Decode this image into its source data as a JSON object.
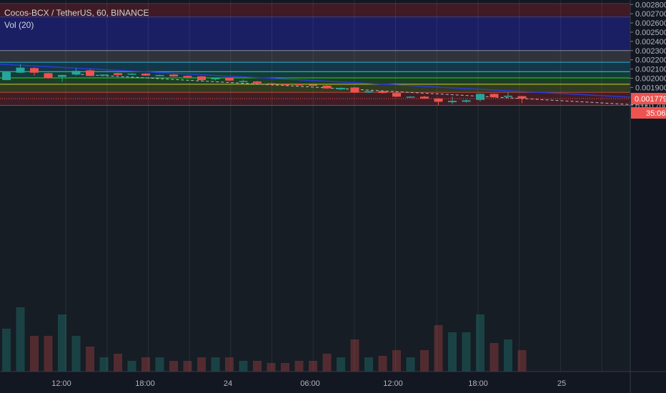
{
  "legend": {
    "symbol_line": "Cocos-BCX / TetherUS, 60, BINANCE",
    "indicator": "Vol (20)"
  },
  "price_axis": {
    "ticks": [
      "0.002800",
      "0.002700",
      "0.002600",
      "0.002500",
      "0.002400",
      "0.002300",
      "0.002200",
      "0.002100",
      "0.002000",
      "0.001900",
      "0.001700"
    ],
    "hidden_tick": "0.001800",
    "current_price_label": "0.001779",
    "countdown_label": "35:06"
  },
  "time_axis": {
    "ticks": [
      "12:00",
      "18:00",
      "24",
      "06:00",
      "12:00",
      "18:00",
      "25"
    ]
  },
  "colors": {
    "background": "#131722",
    "up": "#26a69a",
    "down": "#ef5350",
    "trendline": "#2a3ad6",
    "current_price": "#ef5350"
  },
  "chart_data": {
    "type": "candlestick",
    "timeframe": "60",
    "symbol": "Cocos-BCX / TetherUS",
    "exchange": "BINANCE",
    "ylim": [
      0.00165,
      0.00281
    ],
    "price_levels": [
      0.00281,
      0.002665,
      0.0023,
      0.002173,
      0.002072,
      0.002004,
      0.001935,
      0.001847,
      0.001705
    ],
    "candles": [
      {
        "o": 0.00198,
        "h": 0.00207,
        "l": 0.00198,
        "c": 0.002065
      },
      {
        "o": 0.00206,
        "h": 0.00215,
        "l": 0.002055,
        "c": 0.002115
      },
      {
        "o": 0.00211,
        "h": 0.00212,
        "l": 0.00203,
        "c": 0.00206
      },
      {
        "o": 0.002055,
        "h": 0.00206,
        "l": 0.001995,
        "c": 0.002
      },
      {
        "o": 0.002015,
        "h": 0.00204,
        "l": 0.00196,
        "c": 0.002035
      },
      {
        "o": 0.00204,
        "h": 0.00211,
        "l": 0.00203,
        "c": 0.00208
      },
      {
        "o": 0.002085,
        "h": 0.0021,
        "l": 0.00202,
        "c": 0.002025
      },
      {
        "o": 0.002035,
        "h": 0.00204,
        "l": 0.002028,
        "c": 0.00204
      },
      {
        "o": 0.002055,
        "h": 0.00206,
        "l": 0.00203,
        "c": 0.002035
      },
      {
        "o": 0.00204,
        "h": 0.002055,
        "l": 0.002035,
        "c": 0.00205
      },
      {
        "o": 0.00205,
        "h": 0.002055,
        "l": 0.002025,
        "c": 0.00203
      },
      {
        "o": 0.00203,
        "h": 0.00204,
        "l": 0.002025,
        "c": 0.002035
      },
      {
        "o": 0.00204,
        "h": 0.002045,
        "l": 0.002015,
        "c": 0.00202
      },
      {
        "o": 0.002025,
        "h": 0.00203,
        "l": 0.00201,
        "c": 0.00201
      },
      {
        "o": 0.00202,
        "h": 0.002025,
        "l": 0.001975,
        "c": 0.00198
      },
      {
        "o": 0.00199,
        "h": 0.002005,
        "l": 0.001975,
        "c": 0.002
      },
      {
        "o": 0.002005,
        "h": 0.00201,
        "l": 0.001968,
        "c": 0.001975
      },
      {
        "o": 0.00197,
        "h": 0.001985,
        "l": 0.001962,
        "c": 0.00197
      },
      {
        "o": 0.001965,
        "h": 0.00197,
        "l": 0.00194,
        "c": 0.001945
      },
      {
        "o": 0.001945,
        "h": 0.00195,
        "l": 0.00193,
        "c": 0.001935
      },
      {
        "o": 0.001935,
        "h": 0.00194,
        "l": 0.001928,
        "c": 0.00193
      },
      {
        "o": 0.001935,
        "h": 0.00194,
        "l": 0.001925,
        "c": 0.001928
      },
      {
        "o": 0.00193,
        "h": 0.001935,
        "l": 0.00192,
        "c": 0.001925
      },
      {
        "o": 0.00192,
        "h": 0.001925,
        "l": 0.001885,
        "c": 0.00189
      },
      {
        "o": 0.00188,
        "h": 0.0019,
        "l": 0.00187,
        "c": 0.001895
      },
      {
        "o": 0.0019,
        "h": 0.001905,
        "l": 0.00184,
        "c": 0.001845
      },
      {
        "o": 0.001845,
        "h": 0.00186,
        "l": 0.00184,
        "c": 0.00186
      },
      {
        "o": 0.00186,
        "h": 0.001862,
        "l": 0.001835,
        "c": 0.00184
      },
      {
        "o": 0.00184,
        "h": 0.001845,
        "l": 0.001795,
        "c": 0.0018
      },
      {
        "o": 0.0018,
        "h": 0.001805,
        "l": 0.001795,
        "c": 0.0018
      },
      {
        "o": 0.0018,
        "h": 0.00181,
        "l": 0.001775,
        "c": 0.00178
      },
      {
        "o": 0.00178,
        "h": 0.001785,
        "l": 0.00171,
        "c": 0.001745
      },
      {
        "o": 0.00174,
        "h": 0.0018,
        "l": 0.00172,
        "c": 0.001755
      },
      {
        "o": 0.001745,
        "h": 0.00177,
        "l": 0.001735,
        "c": 0.00176
      },
      {
        "o": 0.001765,
        "h": 0.001835,
        "l": 0.00175,
        "c": 0.00183
      },
      {
        "o": 0.00183,
        "h": 0.001835,
        "l": 0.00179,
        "c": 0.001795
      },
      {
        "o": 0.001805,
        "h": 0.00185,
        "l": 0.0018,
        "c": 0.00181
      },
      {
        "o": 0.001805,
        "h": 0.00181,
        "l": 0.00173,
        "c": 0.00178
      }
    ],
    "volumes": [
      0.6,
      0.9,
      0.5,
      0.5,
      0.8,
      0.5,
      0.35,
      0.2,
      0.25,
      0.15,
      0.2,
      0.2,
      0.15,
      0.15,
      0.2,
      0.2,
      0.2,
      0.15,
      0.15,
      0.12,
      0.12,
      0.15,
      0.15,
      0.25,
      0.2,
      0.45,
      0.2,
      0.22,
      0.3,
      0.2,
      0.3,
      0.65,
      0.55,
      0.55,
      0.8,
      0.4,
      0.45,
      0.3
    ],
    "trendline": [
      {
        "x": -2,
        "y": 0.002165
      },
      {
        "x": 46,
        "y": 0.001785
      }
    ],
    "dashed_line": [
      {
        "x": 5,
        "y": 0.002045
      },
      {
        "x": 46,
        "y": 0.001705
      }
    ],
    "current_price": 0.001779
  }
}
